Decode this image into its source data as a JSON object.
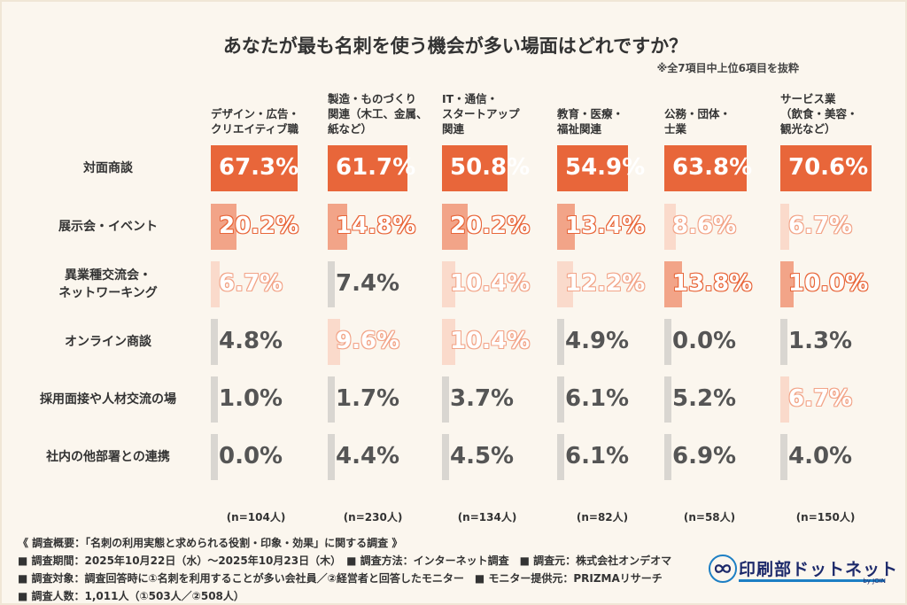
{
  "title": "あなたが最も名刺を使う機会が多い場面はどれですか？",
  "note": "※全7項目中上位6項目を抜粋",
  "colors": {
    "dark": "#e8663a",
    "mid": "#f2a488",
    "light": "#fadacb",
    "grey": "#d9d6d1",
    "background": "#fbf6ee"
  },
  "chart_data": {
    "type": "bar",
    "categories": [
      {
        "lines": [
          "デザイン・広告・",
          "クリエイティブ職"
        ],
        "n": "(n=104人)"
      },
      {
        "lines": [
          "製造・ものづくり",
          "関連（木工、金属、",
          "紙など）"
        ],
        "n": "(n=230人)"
      },
      {
        "lines": [
          "IT・通信・",
          "スタートアップ",
          "関連"
        ],
        "n": "(n=134人)"
      },
      {
        "lines": [
          "教育・医療・",
          "福祉関連"
        ],
        "n": "(n=82人)"
      },
      {
        "lines": [
          "公務・団体・",
          "士業"
        ],
        "n": "(n=58人)"
      },
      {
        "lines": [
          "サービス業",
          "（飲食・美容・",
          "観光など）"
        ],
        "n": "(n=150人)"
      }
    ],
    "rows": [
      {
        "lines": [
          "対面商談"
        ],
        "values": [
          67.3,
          61.7,
          50.8,
          54.9,
          63.8,
          70.6
        ],
        "labels": [
          "67.3%",
          "61.7%",
          "50.8%",
          "54.9%",
          "63.8%",
          "70.6%"
        ],
        "rank": [
          1,
          1,
          1,
          1,
          1,
          1
        ]
      },
      {
        "lines": [
          "展示会・イベント"
        ],
        "values": [
          20.2,
          14.8,
          20.2,
          13.4,
          8.6,
          6.7
        ],
        "labels": [
          "20.2%",
          "14.8%",
          "20.2%",
          "13.4%",
          "8.6%",
          "6.7%"
        ],
        "rank": [
          2,
          2,
          2,
          2,
          3,
          3
        ]
      },
      {
        "lines": [
          "異業種交流会・",
          "ネットワーキング"
        ],
        "values": [
          6.7,
          7.4,
          10.4,
          12.2,
          13.8,
          10.0
        ],
        "labels": [
          "6.7%",
          "7.4%",
          "10.4%",
          "12.2%",
          "13.8%",
          "10.0%"
        ],
        "rank": [
          3,
          0,
          3,
          3,
          2,
          2
        ]
      },
      {
        "lines": [
          "オンライン商談"
        ],
        "values": [
          4.8,
          9.6,
          10.4,
          4.9,
          0.0,
          1.3
        ],
        "labels": [
          "4.8%",
          "9.6%",
          "10.4%",
          "4.9%",
          "0.0%",
          "1.3%"
        ],
        "rank": [
          0,
          3,
          3,
          0,
          0,
          0
        ]
      },
      {
        "lines": [
          "採用面接や人材交流の場"
        ],
        "values": [
          1.0,
          1.7,
          3.7,
          6.1,
          5.2,
          6.7
        ],
        "labels": [
          "1.0%",
          "1.7%",
          "3.7%",
          "6.1%",
          "5.2%",
          "6.7%"
        ],
        "rank": [
          0,
          0,
          0,
          0,
          0,
          3
        ]
      },
      {
        "lines": [
          "社内の他部署との連携"
        ],
        "values": [
          0.0,
          4.4,
          4.5,
          6.1,
          6.9,
          4.0
        ],
        "labels": [
          "0.0%",
          "4.4%",
          "4.5%",
          "6.1%",
          "6.9%",
          "4.0%"
        ],
        "rank": [
          0,
          0,
          0,
          0,
          0,
          0
        ]
      }
    ],
    "ylim": [
      0,
      70.6
    ]
  },
  "footer": [
    "《 調査概要：「名刺の利用実態と求められる役割・印象・効果」に関する調査 》",
    "■ 調査期間：2025年10月22日（水）〜2025年10月23日（木）　■ 調査方法：インターネット調査　■ 調査元：株式会社オンデオマ",
    "■ 調査対象：調査回答時に①名刺を利用することが多い会社員／②経営者と回答したモニター　■ モニター提供元：PRIZMAリサーチ",
    "■ 調査人数：1,011人（①503人／②508人）"
  ],
  "logo": {
    "text": "印刷部ドットネット",
    "sub": "by JOIN",
    "icon": "infinity-logo-icon"
  }
}
